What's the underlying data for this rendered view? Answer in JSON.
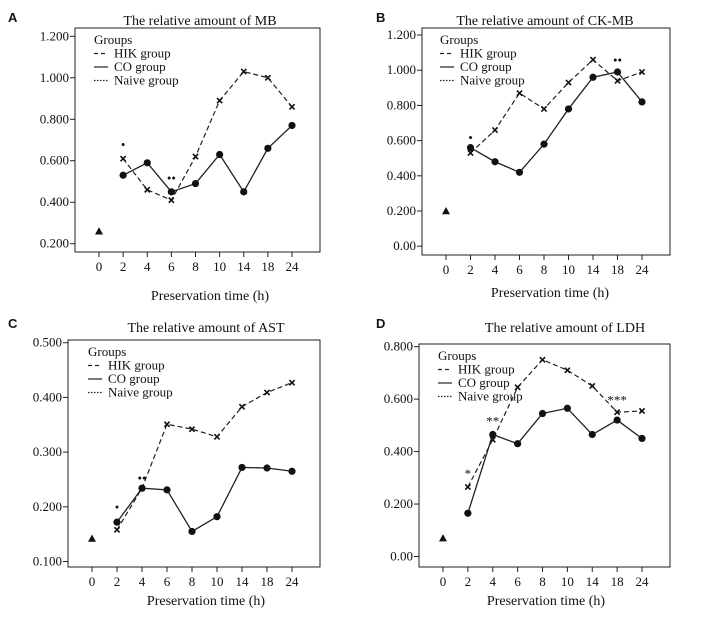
{
  "chart_data": [
    {
      "panel": "A",
      "type": "line",
      "title": "The relative amount of MB",
      "xlabel": "Preservation time (h)",
      "ylabel": "",
      "categories": [
        "0",
        "2",
        "4",
        "6",
        "8",
        "10",
        "14",
        "18",
        "24"
      ],
      "yticks": [
        "0.200",
        "0.400",
        "0.600",
        "0.800",
        "1.000",
        "1.200"
      ],
      "ylim": [
        0.16,
        1.24
      ],
      "legend": {
        "title": "Groups",
        "entries": [
          "HIK group",
          "CO group",
          "Naive group"
        ],
        "position": "top-left"
      },
      "series": [
        {
          "name": "HIK group",
          "style": "dashed",
          "marker": "x",
          "values": [
            null,
            0.61,
            0.46,
            0.41,
            0.62,
            0.89,
            1.03,
            1.0,
            0.86
          ]
        },
        {
          "name": "CO group",
          "style": "solid",
          "marker": "circle",
          "values": [
            null,
            0.53,
            0.59,
            0.45,
            0.49,
            0.63,
            0.45,
            0.66,
            0.77
          ]
        },
        {
          "name": "Naive group",
          "style": "dotted",
          "marker": "triangle",
          "values": [
            0.26,
            null,
            null,
            null,
            null,
            null,
            null,
            null,
            null
          ]
        }
      ],
      "annotations": [
        {
          "text": "•",
          "category": "2",
          "y": 0.67
        },
        {
          "text": "••",
          "category": "6",
          "y": 0.51
        }
      ]
    },
    {
      "panel": "B",
      "type": "line",
      "title": "The relative amount of CK-MB",
      "xlabel": "Preservation time (h)",
      "ylabel": "",
      "categories": [
        "0",
        "2",
        "4",
        "6",
        "8",
        "10",
        "14",
        "18",
        "24"
      ],
      "yticks": [
        "0.00",
        "0.200",
        "0.400",
        "0.600",
        "0.800",
        "1.000",
        "1.200"
      ],
      "ylim": [
        -0.05,
        1.24
      ],
      "legend": {
        "title": "Groups",
        "entries": [
          "HIK group",
          "CO group",
          "Naive group"
        ],
        "position": "top-left"
      },
      "series": [
        {
          "name": "HIK group",
          "style": "dashed",
          "marker": "x",
          "values": [
            null,
            0.53,
            0.66,
            0.87,
            0.78,
            0.93,
            1.06,
            0.94,
            0.99
          ]
        },
        {
          "name": "CO group",
          "style": "solid",
          "marker": "circle",
          "values": [
            null,
            0.56,
            0.48,
            0.42,
            0.58,
            0.78,
            0.96,
            0.99,
            0.82
          ]
        },
        {
          "name": "Naive group",
          "style": "dotted",
          "marker": "triangle",
          "values": [
            0.2,
            null,
            null,
            null,
            null,
            null,
            null,
            null,
            null
          ]
        }
      ],
      "annotations": [
        {
          "text": "•",
          "category": "2",
          "y": 0.61
        },
        {
          "text": "••",
          "category": "18",
          "y": 1.05
        }
      ]
    },
    {
      "panel": "C",
      "type": "line",
      "title": "The relative amount of AST",
      "xlabel": "Preservation time (h)",
      "ylabel": "",
      "categories": [
        "0",
        "2",
        "4",
        "6",
        "8",
        "10",
        "14",
        "18",
        "24"
      ],
      "yticks": [
        "0.100",
        "0.200",
        "0.300",
        "0.400",
        "0.500"
      ],
      "ylim": [
        0.09,
        0.505
      ],
      "legend": {
        "title": "Groups",
        "entries": [
          "HIK group",
          "CO group",
          "Naive group"
        ],
        "position": "top-left"
      },
      "series": [
        {
          "name": "HIK group",
          "style": "dashed",
          "marker": "x",
          "values": [
            null,
            0.158,
            0.234,
            0.351,
            0.342,
            0.328,
            0.383,
            0.409,
            0.427
          ]
        },
        {
          "name": "CO group",
          "style": "solid",
          "marker": "circle",
          "values": [
            null,
            0.172,
            0.234,
            0.231,
            0.155,
            0.182,
            0.272,
            0.271,
            0.265
          ]
        },
        {
          "name": "Naive group",
          "style": "dotted",
          "marker": "triangle",
          "values": [
            0.142,
            null,
            null,
            null,
            null,
            null,
            null,
            null,
            null
          ]
        }
      ],
      "annotations": [
        {
          "text": "•",
          "category": "2",
          "y": 0.197
        },
        {
          "text": "••",
          "category": "4",
          "y": 0.25
        }
      ]
    },
    {
      "panel": "D",
      "type": "line",
      "title": "The relative amount of LDH",
      "xlabel": "Preservation time (h)",
      "ylabel": "",
      "categories": [
        "0",
        "2",
        "4",
        "6",
        "8",
        "10",
        "14",
        "18",
        "24"
      ],
      "yticks": [
        "0.00",
        "0.200",
        "0.400",
        "0.600",
        "0.800"
      ],
      "ylim": [
        -0.04,
        0.81
      ],
      "legend": {
        "title": "Groups",
        "entries": [
          "HIK group",
          "CO group",
          "Naive group"
        ],
        "position": "top-left"
      },
      "series": [
        {
          "name": "HIK group",
          "style": "dashed",
          "marker": "x",
          "values": [
            null,
            0.265,
            0.445,
            0.645,
            0.75,
            0.71,
            0.65,
            0.55,
            0.555
          ]
        },
        {
          "name": "CO group",
          "style": "solid",
          "marker": "circle",
          "values": [
            null,
            0.165,
            0.465,
            0.43,
            0.545,
            0.565,
            0.465,
            0.52,
            0.45
          ]
        },
        {
          "name": "Naive group",
          "style": "dotted",
          "marker": "triangle",
          "values": [
            0.07,
            null,
            null,
            null,
            null,
            null,
            null,
            null,
            null
          ]
        }
      ],
      "annotations": [
        {
          "text": "*",
          "category": "2",
          "y": 0.31
        },
        {
          "text": "**",
          "category": "4",
          "y": 0.51
        },
        {
          "text": "***",
          "category": "18",
          "y": 0.59
        }
      ]
    }
  ]
}
